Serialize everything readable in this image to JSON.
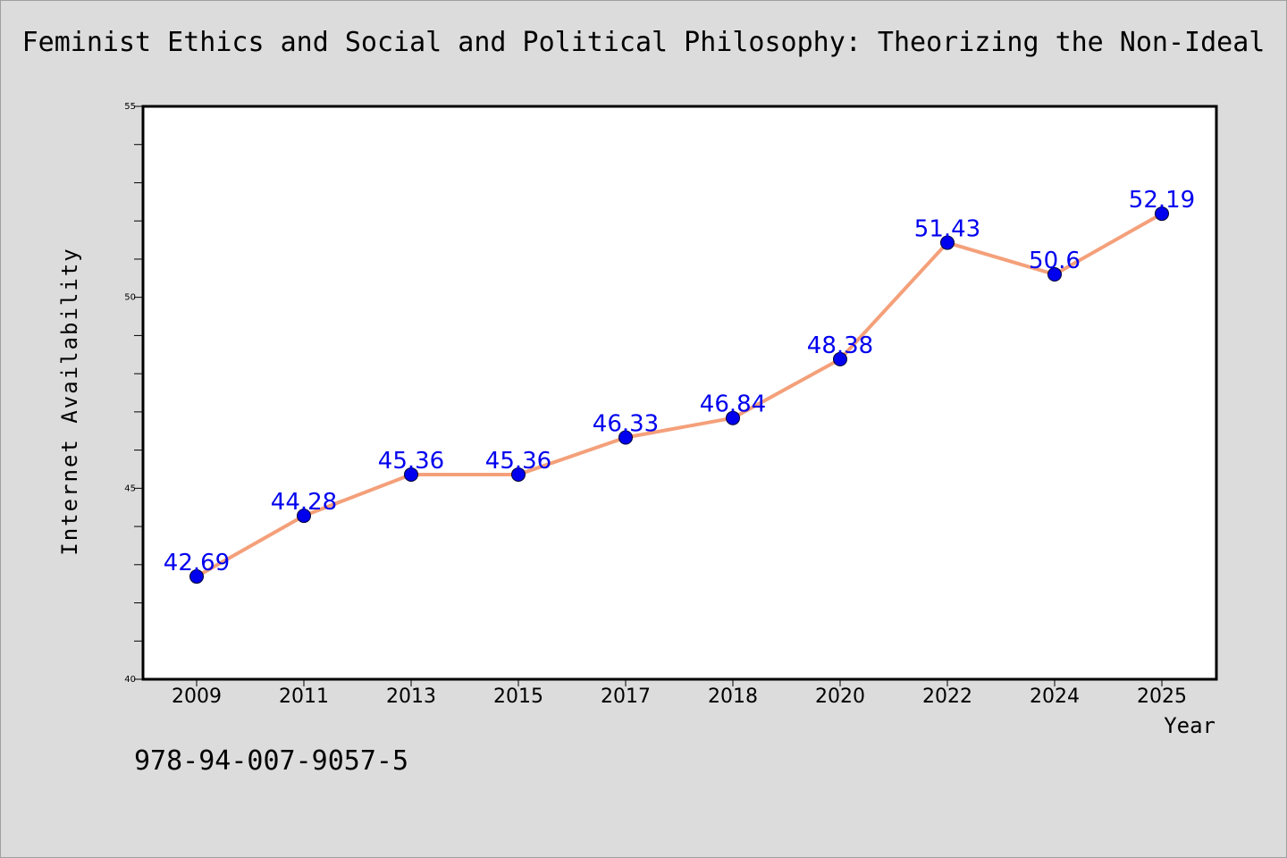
{
  "chart_data": {
    "type": "line",
    "title": "Feminist Ethics and Social and Political Philosophy: Theorizing the Non-Ideal",
    "xlabel": "Year",
    "ylabel": "Internet Availability",
    "categories": [
      "2009",
      "2011",
      "2013",
      "2015",
      "2017",
      "2018",
      "2020",
      "2022",
      "2024",
      "2025"
    ],
    "values": [
      42.69,
      44.28,
      45.36,
      45.36,
      46.33,
      46.84,
      48.38,
      51.43,
      50.6,
      52.19
    ],
    "data_labels": [
      "42.69",
      "44.28",
      "45.36",
      "45.36",
      "46.33",
      "46.84",
      "48.38",
      "51.43",
      "50.6",
      "52.19"
    ],
    "ylim": [
      40,
      55
    ],
    "yticks": [
      "40",
      "45",
      "50",
      "55"
    ],
    "grid": false,
    "legend": "none",
    "colors": {
      "line": "#f4a07a",
      "marker": "#0000ee",
      "label": "#0000ee",
      "plot_background": "#ffffff",
      "page_background": "#dcdcdc"
    }
  },
  "footnote": "978-94-007-9057-5"
}
